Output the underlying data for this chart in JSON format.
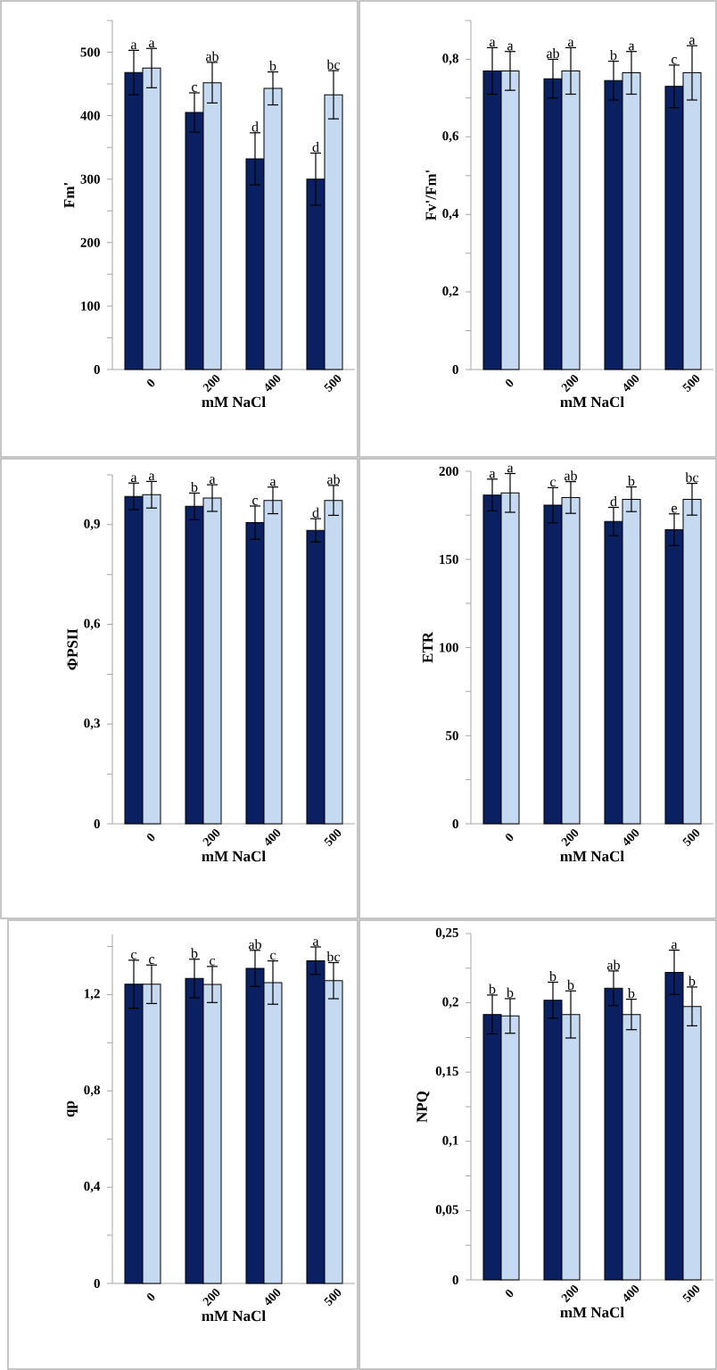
{
  "chart_data": [
    {
      "type": "bar",
      "ylabel": "Fm'",
      "xlabel": "mM NaCl",
      "categories": [
        "0",
        "200",
        "400",
        "500"
      ],
      "series": [
        {
          "color": "#0a2060",
          "values": [
            468,
            405,
            332,
            300
          ],
          "errors": [
            35,
            31,
            41,
            41
          ],
          "value_labels": [
            "a",
            "c",
            "d",
            "d"
          ]
        },
        {
          "color": "#c5d9f1",
          "values": [
            475,
            452,
            443,
            433
          ],
          "errors": [
            31,
            32,
            26,
            38
          ],
          "value_labels": [
            "a",
            "ab",
            "b",
            "bc"
          ]
        }
      ],
      "ylim": [
        0,
        550
      ],
      "yticks": [
        {
          "value": 0,
          "label": "0"
        },
        {
          "value": 50,
          "label": null
        },
        {
          "value": 100,
          "label": "100"
        },
        {
          "value": 150,
          "label": null
        },
        {
          "value": 200,
          "label": "200"
        },
        {
          "value": 250,
          "label": null
        },
        {
          "value": 300,
          "label": "300"
        },
        {
          "value": 350,
          "label": null
        },
        {
          "value": 400,
          "label": "400"
        },
        {
          "value": 450,
          "label": null
        },
        {
          "value": 500,
          "label": "500"
        },
        {
          "value": 550,
          "label": null
        }
      ]
    },
    {
      "type": "bar",
      "ylabel": "Fv'/Fm'",
      "xlabel": "mM NaCl",
      "categories": [
        "0",
        "200",
        "400",
        "500"
      ],
      "series": [
        {
          "color": "#0a2060",
          "values": [
            0.77,
            0.75,
            0.745,
            0.73
          ],
          "errors": [
            0.06,
            0.05,
            0.05,
            0.055
          ],
          "value_labels": [
            "a",
            "ab",
            "b",
            "c"
          ]
        },
        {
          "color": "#c5d9f1",
          "values": [
            0.77,
            0.77,
            0.765,
            0.765
          ],
          "errors": [
            0.05,
            0.06,
            0.055,
            0.07
          ],
          "value_labels": [
            "a",
            "a",
            "a",
            "a"
          ]
        }
      ],
      "ylim": [
        0,
        0.9
      ],
      "yticks": [
        {
          "value": 0,
          "label": "0"
        },
        {
          "value": 0.1,
          "label": null
        },
        {
          "value": 0.2,
          "label": "0,2"
        },
        {
          "value": 0.3,
          "label": null
        },
        {
          "value": 0.4,
          "label": "0,4"
        },
        {
          "value": 0.5,
          "label": null
        },
        {
          "value": 0.6,
          "label": "0,6"
        },
        {
          "value": 0.7,
          "label": null
        },
        {
          "value": 0.8,
          "label": "0,8"
        },
        {
          "value": 0.9,
          "label": null
        }
      ]
    },
    {
      "type": "bar",
      "ylabel": "ΦPSII",
      "xlabel": "mM NaCl",
      "categories": [
        "0",
        "200",
        "400",
        "500"
      ],
      "series": [
        {
          "color": "#0a2060",
          "values": [
            0.985,
            0.955,
            0.906,
            0.883
          ],
          "errors": [
            0.04,
            0.04,
            0.05,
            0.035
          ],
          "value_labels": [
            "a",
            "b",
            "c",
            "d"
          ]
        },
        {
          "color": "#c5d9f1",
          "values": [
            0.99,
            0.98,
            0.973,
            0.973
          ],
          "errors": [
            0.04,
            0.04,
            0.04,
            0.045
          ],
          "value_labels": [
            "a",
            "a",
            "a",
            "ab"
          ]
        }
      ],
      "ylim": [
        0,
        1.05
      ],
      "yticks": [
        {
          "value": 0,
          "label": "0"
        },
        {
          "value": 0.15,
          "label": null
        },
        {
          "value": 0.3,
          "label": "0,3"
        },
        {
          "value": 0.45,
          "label": null
        },
        {
          "value": 0.6,
          "label": "0,6"
        },
        {
          "value": 0.75,
          "label": null
        },
        {
          "value": 0.9,
          "label": "0,9"
        },
        {
          "value": 1.05,
          "label": null
        }
      ]
    },
    {
      "type": "bar",
      "ylabel": "ETR",
      "xlabel": "mM NaCl",
      "categories": [
        "0",
        "200",
        "400",
        "500"
      ],
      "series": [
        {
          "color": "#0a2060",
          "values": [
            186.5,
            180.7,
            171.5,
            166.8
          ],
          "errors": [
            9,
            10,
            8,
            9
          ],
          "value_labels": [
            "a",
            "c",
            "d",
            "e"
          ]
        },
        {
          "color": "#c5d9f1",
          "values": [
            187.7,
            185.1,
            184.1,
            184.1
          ],
          "errors": [
            11,
            9,
            7,
            9
          ],
          "value_labels": [
            "a",
            "ab",
            "b",
            "bc"
          ]
        }
      ],
      "ylim": [
        0,
        200
      ],
      "yticks": [
        {
          "value": 0,
          "label": "0"
        },
        {
          "value": 25,
          "label": null
        },
        {
          "value": 50,
          "label": "50"
        },
        {
          "value": 75,
          "label": null
        },
        {
          "value": 100,
          "label": "100"
        },
        {
          "value": 125,
          "label": null
        },
        {
          "value": 150,
          "label": "150"
        },
        {
          "value": 175,
          "label": null
        },
        {
          "value": 200,
          "label": "200"
        }
      ]
    },
    {
      "type": "bar",
      "ylabel": "qp",
      "xlabel": "mM NaCl",
      "categories": [
        "0",
        "200",
        "400",
        "500"
      ],
      "series": [
        {
          "color": "#0a2060",
          "values": [
            1.243,
            1.267,
            1.309,
            1.341
          ],
          "errors": [
            0.1,
            0.08,
            0.075,
            0.057
          ],
          "value_labels": [
            "c",
            "b",
            "ab",
            "a"
          ]
        },
        {
          "color": "#c5d9f1",
          "values": [
            1.243,
            1.242,
            1.25,
            1.258
          ],
          "errors": [
            0.08,
            0.075,
            0.09,
            0.075
          ],
          "value_labels": [
            "c",
            "c",
            "c",
            "bc"
          ]
        }
      ],
      "ylim": [
        0,
        1.45
      ],
      "yticks": [
        {
          "value": 0,
          "label": "0"
        },
        {
          "value": 0.2,
          "label": null
        },
        {
          "value": 0.4,
          "label": "0,4"
        },
        {
          "value": 0.6,
          "label": null
        },
        {
          "value": 0.8,
          "label": "0,8"
        },
        {
          "value": 1.0,
          "label": null
        },
        {
          "value": 1.2,
          "label": "1,2"
        },
        {
          "value": 1.4,
          "label": null
        }
      ]
    },
    {
      "type": "bar",
      "ylabel": "NPQ",
      "xlabel": "mM NaCl",
      "categories": [
        "0",
        "200",
        "400",
        "500"
      ],
      "series": [
        {
          "color": "#0a2060",
          "values": [
            0.1916,
            0.2019,
            0.2105,
            0.222
          ],
          "errors": [
            0.014,
            0.013,
            0.0125,
            0.016
          ],
          "value_labels": [
            "b",
            "b",
            "ab",
            "a"
          ]
        },
        {
          "color": "#c5d9f1",
          "values": [
            0.1905,
            0.1916,
            0.1916,
            0.1974
          ],
          "errors": [
            0.0125,
            0.017,
            0.011,
            0.014
          ],
          "value_labels": [
            "b",
            "b",
            "b",
            "b"
          ]
        }
      ],
      "ylim": [
        0,
        0.25
      ],
      "yticks": [
        {
          "value": 0,
          "label": "0"
        },
        {
          "value": 0.025,
          "label": null
        },
        {
          "value": 0.05,
          "label": "0,05"
        },
        {
          "value": 0.075,
          "label": null
        },
        {
          "value": 0.1,
          "label": "0,1"
        },
        {
          "value": 0.125,
          "label": null
        },
        {
          "value": 0.15,
          "label": "0,15"
        },
        {
          "value": 0.175,
          "label": null
        },
        {
          "value": 0.2,
          "label": "0,2"
        },
        {
          "value": 0.225,
          "label": null
        },
        {
          "value": 0.25,
          "label": "0,25"
        }
      ]
    }
  ]
}
